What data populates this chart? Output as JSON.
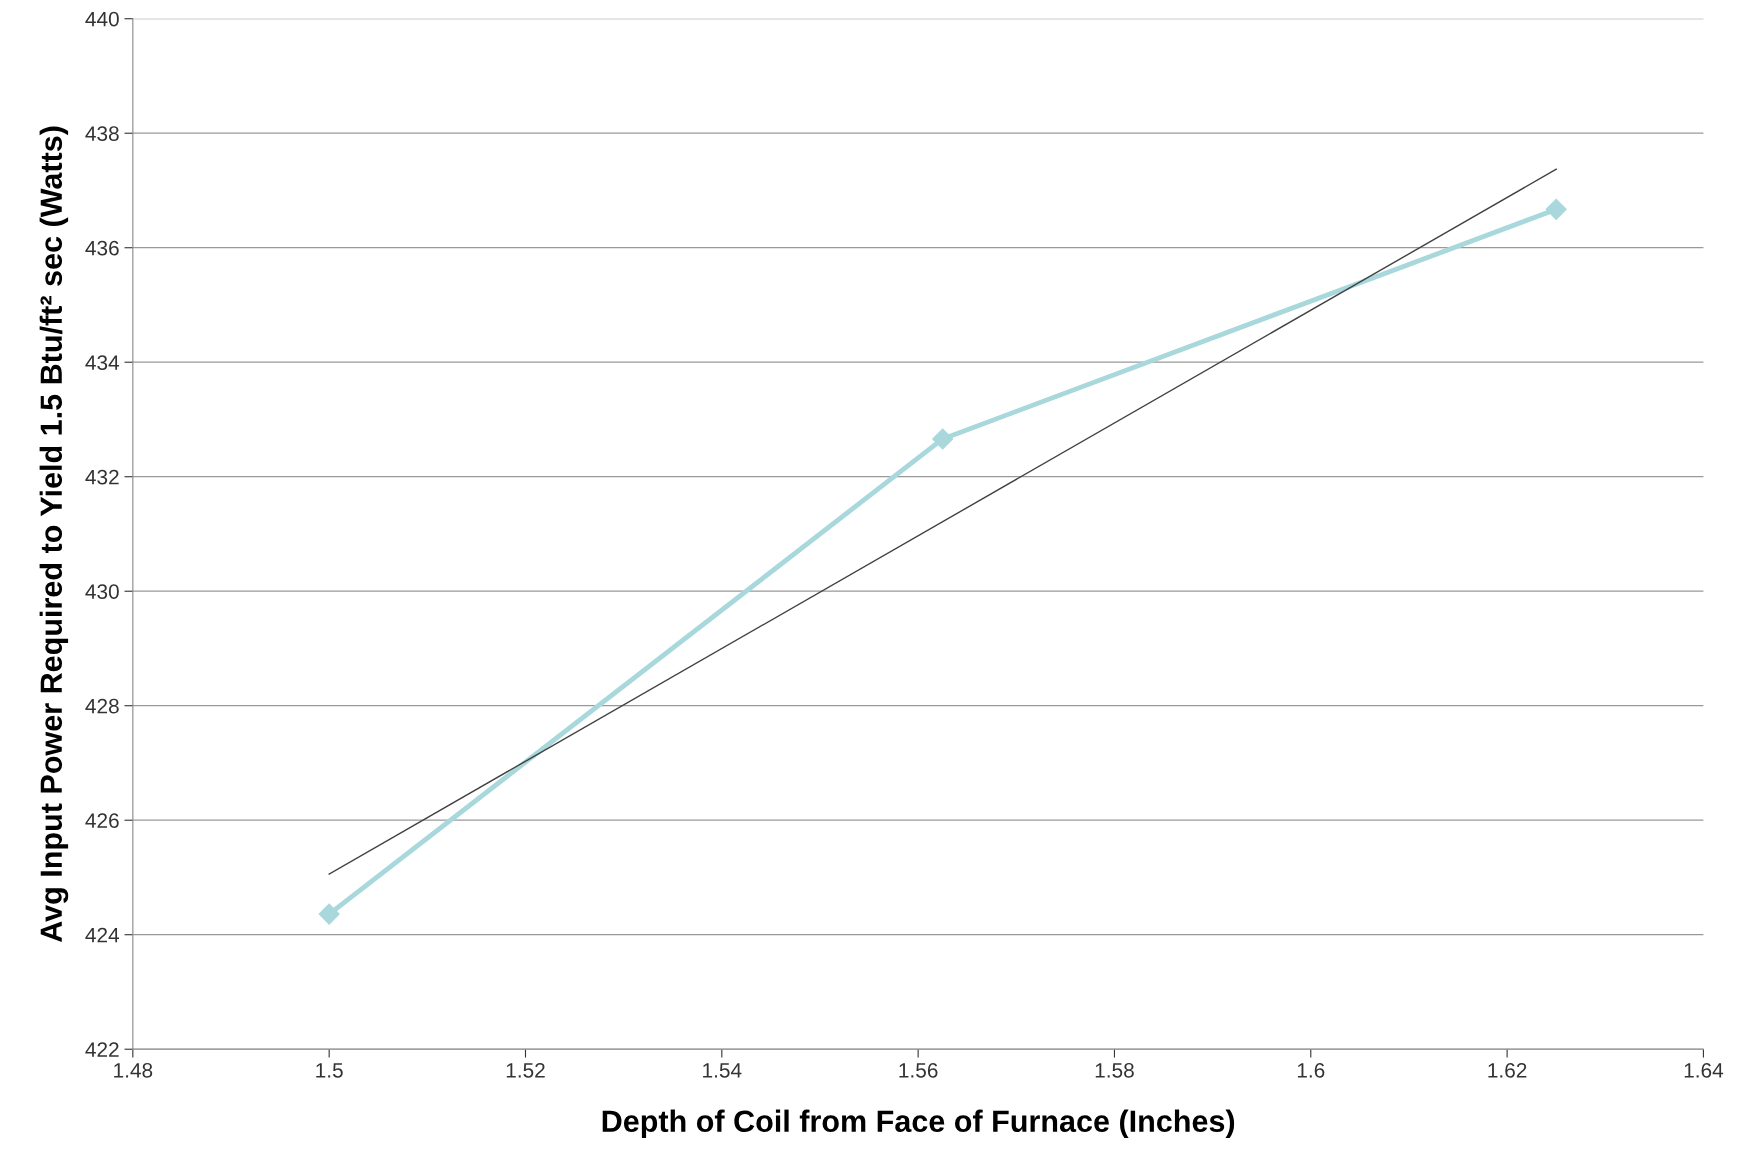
{
  "chart_data": {
    "type": "line",
    "xlabel": "Depth of Coil from Face of Furnace (Inches)",
    "ylabel": "Avg Input Power Required to Yield 1.5 Btu/ft² sec (Watts)",
    "series": [
      {
        "color": "#a8d8dc",
        "marker": "diamond",
        "x": [
          1.5,
          1.5625,
          1.625
        ],
        "values": [
          424.36,
          432.66,
          436.67
        ]
      },
      {
        "color": "#404040",
        "marker": "none",
        "x": [
          1.5,
          1.625
        ],
        "values": [
          425.06,
          437.37
        ]
      }
    ],
    "xlim": [
      1.48,
      1.64
    ],
    "xticks": [
      1.48,
      1.5,
      1.52,
      1.54,
      1.56,
      1.58,
      1.6,
      1.62,
      1.64
    ],
    "ylim": [
      422,
      440
    ],
    "yticks": [
      422,
      424,
      426,
      428,
      430,
      432,
      434,
      436,
      438,
      440
    ],
    "grid": "y",
    "legend": false
  }
}
